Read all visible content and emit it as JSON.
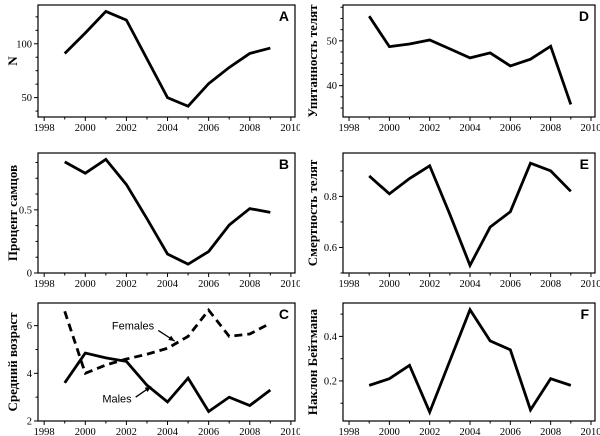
{
  "figure": {
    "background": "#ffffff",
    "line_color": "#000000"
  },
  "chart_data": [
    {
      "type": "line",
      "letter": "A",
      "ylabel": "N",
      "x": [
        1999,
        2000,
        2001,
        2002,
        2003,
        2004,
        2005,
        2006,
        2007,
        2008,
        2009
      ],
      "series": [
        {
          "name": "N",
          "style": "solid",
          "values": [
            91,
            110,
            130,
            122,
            86,
            50,
            42,
            63,
            78,
            91,
            96
          ]
        }
      ],
      "xlim": [
        1997.7,
        2010.2
      ],
      "ylim": [
        32,
        136
      ],
      "xticks": [
        1998,
        2000,
        2002,
        2004,
        2006,
        2008,
        2010
      ],
      "xminor_step": 1,
      "yticks": [
        50,
        100
      ],
      "yminor_step": 12.5,
      "grid": false,
      "annotations": []
    },
    {
      "type": "line",
      "letter": "B",
      "ylabel": "Процент самцов",
      "x": [
        1999,
        2000,
        2001,
        2002,
        2003,
        2004,
        2005,
        2006,
        2007,
        2008,
        2009
      ],
      "series": [
        {
          "name": "Процент самцов",
          "style": "solid",
          "values": [
            0.88,
            0.79,
            0.9,
            0.7,
            0.43,
            0.15,
            0.07,
            0.17,
            0.38,
            0.51,
            0.48
          ]
        }
      ],
      "xlim": [
        1997.7,
        2010.2
      ],
      "ylim": [
        0,
        0.95
      ],
      "xticks": [
        1998,
        2000,
        2002,
        2004,
        2006,
        2008,
        2010
      ],
      "xminor_step": 1,
      "yticks": [
        0,
        0.5
      ],
      "yminor_step": 0.125,
      "grid": false,
      "annotations": []
    },
    {
      "type": "line",
      "letter": "C",
      "ylabel": "Средний возраст",
      "x": [
        1999,
        2000,
        2001,
        2002,
        2003,
        2004,
        2005,
        2006,
        2007,
        2008,
        2009
      ],
      "series": [
        {
          "name": "Females",
          "style": "dashed",
          "values": [
            6.6,
            4.0,
            4.35,
            4.6,
            4.8,
            5.05,
            5.55,
            6.65,
            5.55,
            5.65,
            6.1
          ]
        },
        {
          "name": "Males",
          "style": "solid",
          "values": [
            3.6,
            4.85,
            4.65,
            4.5,
            3.5,
            2.8,
            3.8,
            2.4,
            3.0,
            2.65,
            3.3
          ]
        }
      ],
      "xlim": [
        1997.7,
        2010.2
      ],
      "ylim": [
        2,
        6.95
      ],
      "xticks": [
        1998,
        2000,
        2002,
        2004,
        2006,
        2008,
        2010
      ],
      "xminor_step": 1,
      "yticks": [
        2,
        4,
        6
      ],
      "yminor_step": 1,
      "grid": false,
      "annotations": [
        {
          "text": "Females",
          "text_xy": [
            2002.3,
            5.95
          ],
          "arrow": [
            [
              2003.55,
              5.8
            ],
            [
              2004.35,
              5.35
            ]
          ]
        },
        {
          "text": "Males",
          "text_xy": [
            2001.6,
            2.87
          ],
          "arrow": [
            [
              2002.45,
              3.0
            ],
            [
              2003.2,
              3.45
            ]
          ]
        }
      ]
    },
    {
      "type": "line",
      "letter": "D",
      "ylabel": "Упитанность телят",
      "x": [
        1999,
        2000,
        2001,
        2002,
        2003,
        2004,
        2005,
        2006,
        2007,
        2008,
        2009
      ],
      "series": [
        {
          "name": "Упитанность телят",
          "style": "solid",
          "values": [
            55.5,
            48.7,
            49.3,
            50.2,
            48.2,
            46.2,
            47.3,
            44.4,
            45.9,
            48.8,
            35.8
          ]
        }
      ],
      "xlim": [
        1997.7,
        2010.2
      ],
      "ylim": [
        33,
        58
      ],
      "xticks": [
        1998,
        2000,
        2002,
        2004,
        2006,
        2008,
        2010
      ],
      "xminor_step": 1,
      "yticks": [
        40,
        50
      ],
      "yminor_step": 2.5,
      "grid": false,
      "annotations": []
    },
    {
      "type": "line",
      "letter": "E",
      "ylabel": "Смертность телят",
      "x": [
        1999,
        2000,
        2001,
        2002,
        2003,
        2004,
        2005,
        2006,
        2007,
        2008,
        2009
      ],
      "series": [
        {
          "name": "Смертность телят",
          "style": "solid",
          "values": [
            0.88,
            0.81,
            0.87,
            0.92,
            0.73,
            0.53,
            0.68,
            0.74,
            0.93,
            0.9,
            0.82
          ]
        }
      ],
      "xlim": [
        1997.7,
        2010.2
      ],
      "ylim": [
        0.5,
        0.97
      ],
      "xticks": [
        1998,
        2000,
        2002,
        2004,
        2006,
        2008,
        2010
      ],
      "xminor_step": 1,
      "yticks": [
        0.6,
        0.8
      ],
      "yminor_step": 0.1,
      "grid": false,
      "annotations": []
    },
    {
      "type": "line",
      "letter": "F",
      "ylabel": "Наклон Бейтмана",
      "x": [
        1999,
        2000,
        2001,
        2002,
        2003,
        2004,
        2005,
        2006,
        2007,
        2008,
        2009
      ],
      "series": [
        {
          "name": "Наклон Бейтмана",
          "style": "solid",
          "values": [
            0.18,
            0.21,
            0.27,
            0.06,
            0.29,
            0.52,
            0.38,
            0.34,
            0.07,
            0.21,
            0.18
          ]
        }
      ],
      "xlim": [
        1997.7,
        2010.2
      ],
      "ylim": [
        0.02,
        0.55
      ],
      "xticks": [
        1998,
        2000,
        2002,
        2004,
        2006,
        2008,
        2010
      ],
      "xminor_step": 1,
      "yticks": [
        0.2,
        0.4
      ],
      "yminor_step": 0.1,
      "grid": false,
      "annotations": []
    }
  ]
}
